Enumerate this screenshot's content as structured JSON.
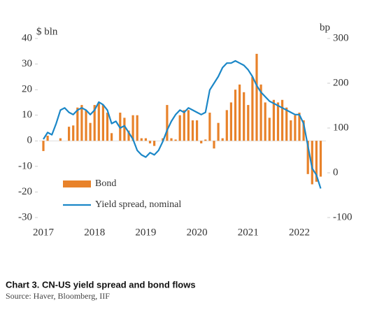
{
  "chart_data": {
    "type": "bar-line",
    "caption": "Chart 3. CN-US yield spread and bond flows",
    "source": "Source:  Haver, Bloomberg, IIF",
    "ylabel": "$ bln",
    "y2label": "bp",
    "categories": [
      "2017",
      null,
      null,
      null,
      null,
      null,
      null,
      null,
      null,
      null,
      null,
      null,
      "2018",
      null,
      null,
      null,
      null,
      null,
      null,
      null,
      null,
      null,
      null,
      null,
      "2019",
      null,
      null,
      null,
      null,
      null,
      null,
      null,
      null,
      null,
      null,
      null,
      "2020",
      null,
      null,
      null,
      null,
      null,
      null,
      null,
      null,
      null,
      null,
      null,
      "2021",
      null,
      null,
      null,
      null,
      null,
      null,
      null,
      null,
      null,
      null,
      null,
      "2022",
      null,
      null,
      null,
      null,
      null
    ],
    "ylim": [
      -30,
      40
    ],
    "yticks": [
      -30,
      -20,
      -10,
      0,
      10,
      20,
      30,
      40
    ],
    "y2lim": [
      -100,
      300
    ],
    "y2ticks": [
      -100,
      0,
      100,
      200,
      300
    ],
    "series": [
      {
        "name": "Bond",
        "type": "bar",
        "color": "#e8822a",
        "values": [
          -4,
          2,
          0,
          0,
          1,
          0,
          5.5,
          6,
          13,
          14,
          12,
          7,
          14,
          15,
          14,
          11,
          3,
          0,
          11,
          9,
          4,
          10,
          10,
          1,
          1,
          -1,
          -2,
          0,
          1,
          14,
          1,
          0.5,
          10,
          12,
          12,
          8,
          8,
          -1,
          0.5,
          11,
          -3,
          7,
          1,
          12,
          15,
          20,
          22,
          19,
          14,
          25,
          34,
          22,
          15,
          9,
          16,
          15,
          16,
          13,
          8,
          10,
          11,
          8,
          -13,
          -17,
          -16,
          -14
        ]
      },
      {
        "name": "Yield spread, nominal",
        "type": "line",
        "axis": "y2",
        "color": "#1b87c7",
        "values": [
          75,
          90,
          85,
          110,
          140,
          145,
          135,
          130,
          140,
          145,
          140,
          130,
          140,
          158,
          152,
          140,
          110,
          115,
          100,
          105,
          90,
          75,
          50,
          40,
          35,
          45,
          40,
          50,
          70,
          95,
          115,
          130,
          140,
          135,
          145,
          140,
          135,
          130,
          135,
          185,
          200,
          215,
          235,
          245,
          245,
          250,
          245,
          240,
          230,
          215,
          195,
          180,
          170,
          160,
          155,
          150,
          145,
          140,
          135,
          130,
          130,
          110,
          60,
          10,
          -5,
          -35
        ]
      }
    ]
  }
}
